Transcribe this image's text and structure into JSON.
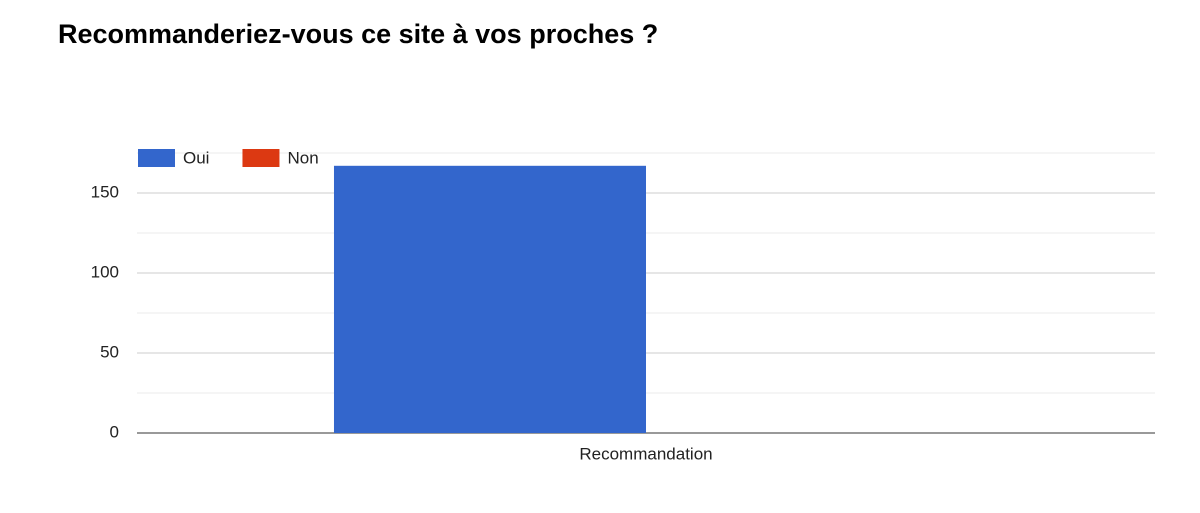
{
  "chart_data": {
    "type": "bar",
    "title": "Recommanderiez-vous ce site à vos proches ?",
    "categories": [
      "Recommandation"
    ],
    "series": [
      {
        "name": "Oui",
        "color": "#3366cc",
        "values": [
          167
        ]
      },
      {
        "name": "Non",
        "color": "#dc3912",
        "values": [
          0
        ]
      }
    ],
    "ylim": [
      0,
      175
    ],
    "yticks": [
      0,
      50,
      100,
      150
    ],
    "yminorticks": [
      25,
      75,
      125,
      175
    ],
    "grid": true,
    "legend": "top-left"
  }
}
